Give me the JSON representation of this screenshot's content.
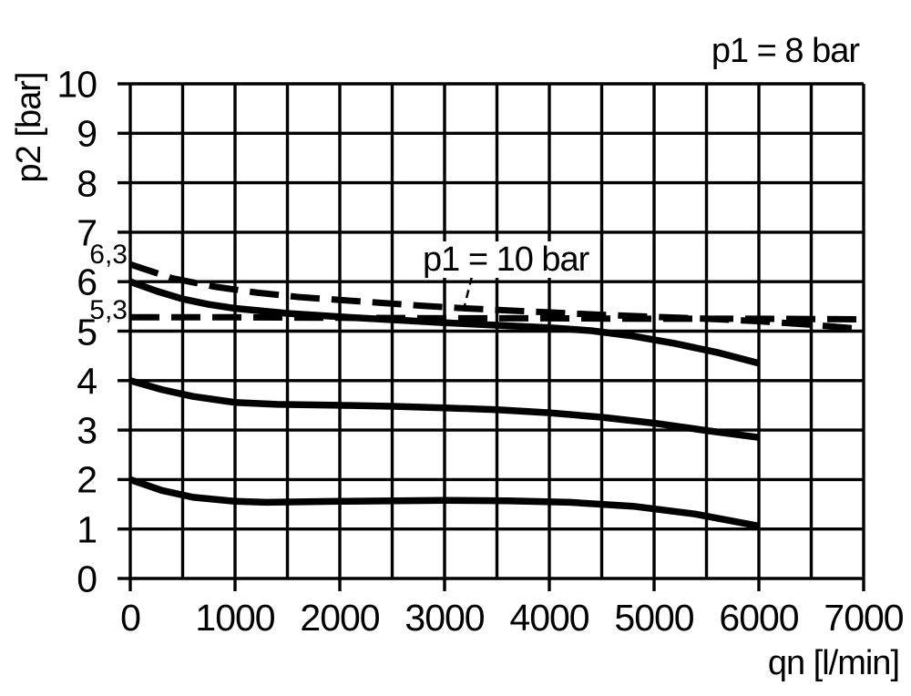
{
  "page": {
    "background_color": "#ffffff",
    "foreground_color": "#000000"
  },
  "chart_data": {
    "type": "line",
    "title": "p1 = 8 bar",
    "annotation": "p1 = 10 bar",
    "xlabel": "qn [l/min]",
    "ylabel": "p2 [bar]",
    "xlim": [
      0,
      7000
    ],
    "ylim": [
      0,
      10
    ],
    "x_ticks": [
      0,
      1000,
      2000,
      3000,
      4000,
      5000,
      6000,
      7000
    ],
    "y_ticks": [
      0,
      1,
      2,
      3,
      4,
      5,
      6,
      7,
      8,
      9,
      10
    ],
    "x_grid_step": 500,
    "y_grid_step": 1,
    "grid": true,
    "legend_position": "none",
    "special_y_labels": [
      "6,3",
      "5,3"
    ],
    "special_y_values": [
      6.3,
      5.3
    ],
    "annotation_leader": [
      [
        3260,
        6.1
      ],
      [
        3180,
        5.42
      ]
    ],
    "series": [
      {
        "name": "p1-10bar-setting-6.3",
        "style": "dashed",
        "points": [
          [
            0,
            6.35
          ],
          [
            400,
            6.07
          ],
          [
            800,
            5.9
          ],
          [
            1200,
            5.78
          ],
          [
            1600,
            5.69
          ],
          [
            2000,
            5.63
          ],
          [
            2400,
            5.57
          ],
          [
            2800,
            5.51
          ],
          [
            3200,
            5.46
          ],
          [
            3600,
            5.42
          ],
          [
            4000,
            5.38
          ],
          [
            4500,
            5.33
          ],
          [
            5000,
            5.29
          ],
          [
            5500,
            5.25
          ],
          [
            6000,
            5.2
          ],
          [
            6500,
            5.13
          ],
          [
            7000,
            5.04
          ]
        ]
      },
      {
        "name": "p1-10bar-setting-5.3",
        "style": "dashed",
        "points": [
          [
            0,
            5.28
          ],
          [
            1000,
            5.28
          ],
          [
            2000,
            5.27
          ],
          [
            3000,
            5.26
          ],
          [
            4000,
            5.26
          ],
          [
            5000,
            5.25
          ],
          [
            6000,
            5.25
          ],
          [
            7000,
            5.24
          ]
        ]
      },
      {
        "name": "p1-8bar-setting-6",
        "style": "solid",
        "points": [
          [
            0,
            6.0
          ],
          [
            250,
            5.81
          ],
          [
            500,
            5.65
          ],
          [
            750,
            5.54
          ],
          [
            1000,
            5.46
          ],
          [
            1500,
            5.36
          ],
          [
            2000,
            5.29
          ],
          [
            2500,
            5.23
          ],
          [
            3000,
            5.17
          ],
          [
            3500,
            5.12
          ],
          [
            4000,
            5.07
          ],
          [
            4400,
            5.01
          ],
          [
            4800,
            4.9
          ],
          [
            5200,
            4.75
          ],
          [
            5600,
            4.57
          ],
          [
            6000,
            4.35
          ]
        ]
      },
      {
        "name": "p1-8bar-setting-4",
        "style": "solid",
        "points": [
          [
            0,
            4.0
          ],
          [
            300,
            3.82
          ],
          [
            600,
            3.68
          ],
          [
            1000,
            3.56
          ],
          [
            1400,
            3.52
          ],
          [
            2000,
            3.5
          ],
          [
            2500,
            3.48
          ],
          [
            3000,
            3.45
          ],
          [
            3500,
            3.41
          ],
          [
            4000,
            3.35
          ],
          [
            4500,
            3.26
          ],
          [
            5000,
            3.14
          ],
          [
            5500,
            2.99
          ],
          [
            6000,
            2.85
          ]
        ]
      },
      {
        "name": "p1-8bar-setting-2",
        "style": "solid",
        "points": [
          [
            0,
            2.0
          ],
          [
            300,
            1.78
          ],
          [
            600,
            1.64
          ],
          [
            1000,
            1.56
          ],
          [
            1300,
            1.54
          ],
          [
            2000,
            1.56
          ],
          [
            3000,
            1.58
          ],
          [
            3600,
            1.57
          ],
          [
            4200,
            1.54
          ],
          [
            4800,
            1.46
          ],
          [
            5400,
            1.3
          ],
          [
            6000,
            1.06
          ]
        ]
      }
    ]
  }
}
